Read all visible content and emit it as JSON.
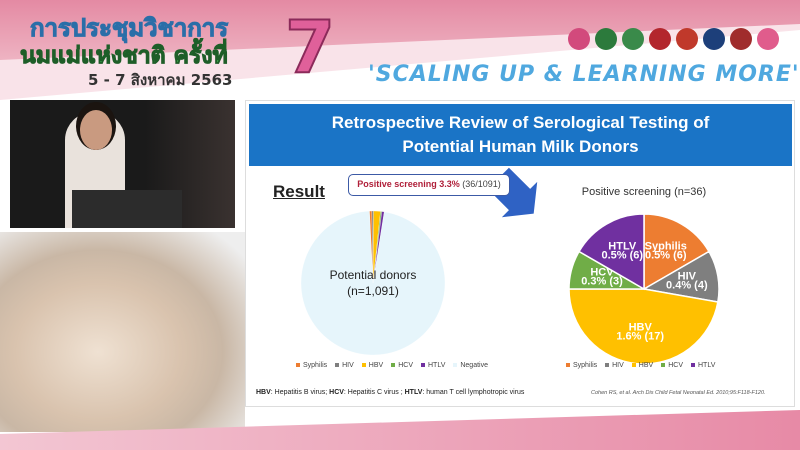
{
  "header": {
    "line1": "การประชุมวิชาการ",
    "line2": "นมแม่แห่งชาติ ครั้งที่",
    "dates": "5 - 7 สิงหาคม 2563",
    "number": "7",
    "slogan": "'SCALING UP & LEARNING MORE'"
  },
  "slide": {
    "title_line1": "Retrospective Review of Serological Testing of",
    "title_line2": "Potential Human Milk Donors",
    "result_heading": "Result",
    "callout_bold": "Positive screening 3.3%",
    "callout_rest": " (36/1091)",
    "footnote": [
      {
        "abbr": "HBV",
        "text": ": Hepatitis B virus; "
      },
      {
        "abbr": "HCV",
        "text": ": Hepatitis C virus ; "
      },
      {
        "abbr": "HTLV",
        "text": ": human T cell lymphotropic virus"
      }
    ],
    "citation": "Cohen RS, et al. Arch Dis Child Fetal Neonatal Ed. 2010;95:F118-F120."
  },
  "chart_data": [
    {
      "type": "pie",
      "title": "",
      "center_label": [
        "Potential donors",
        "(n=1,091)"
      ],
      "categories": [
        "Syphilis",
        "HIV",
        "HBV",
        "HCV",
        "HTLV",
        "Negative"
      ],
      "values": [
        6,
        4,
        17,
        3,
        6,
        1055
      ],
      "colors": [
        "#ed7d31",
        "#7f7f7f",
        "#ffc000",
        "#70ad47",
        "#7030a0",
        "#e6f5fb"
      ],
      "legend": "bottom"
    },
    {
      "type": "pie",
      "title": "Positive screening (n=36)",
      "categories": [
        "Syphilis",
        "HIV",
        "HBV",
        "HCV",
        "HTLV"
      ],
      "values": [
        6,
        4,
        17,
        3,
        6
      ],
      "data_labels": [
        "0.5% (6)",
        "0.4% (4)",
        "1.6% (17)",
        "0.3% (3)",
        "0.5% (6)"
      ],
      "colors": [
        "#ed7d31",
        "#7f7f7f",
        "#ffc000",
        "#70ad47",
        "#7030a0"
      ],
      "legend": "bottom"
    }
  ],
  "logo_colors": [
    "#d24a7c",
    "#2c7a3c",
    "#3a8a4a",
    "#b3262d",
    "#c0392b",
    "#1d3f7a",
    "#a02c2c",
    "#e05c8c"
  ]
}
